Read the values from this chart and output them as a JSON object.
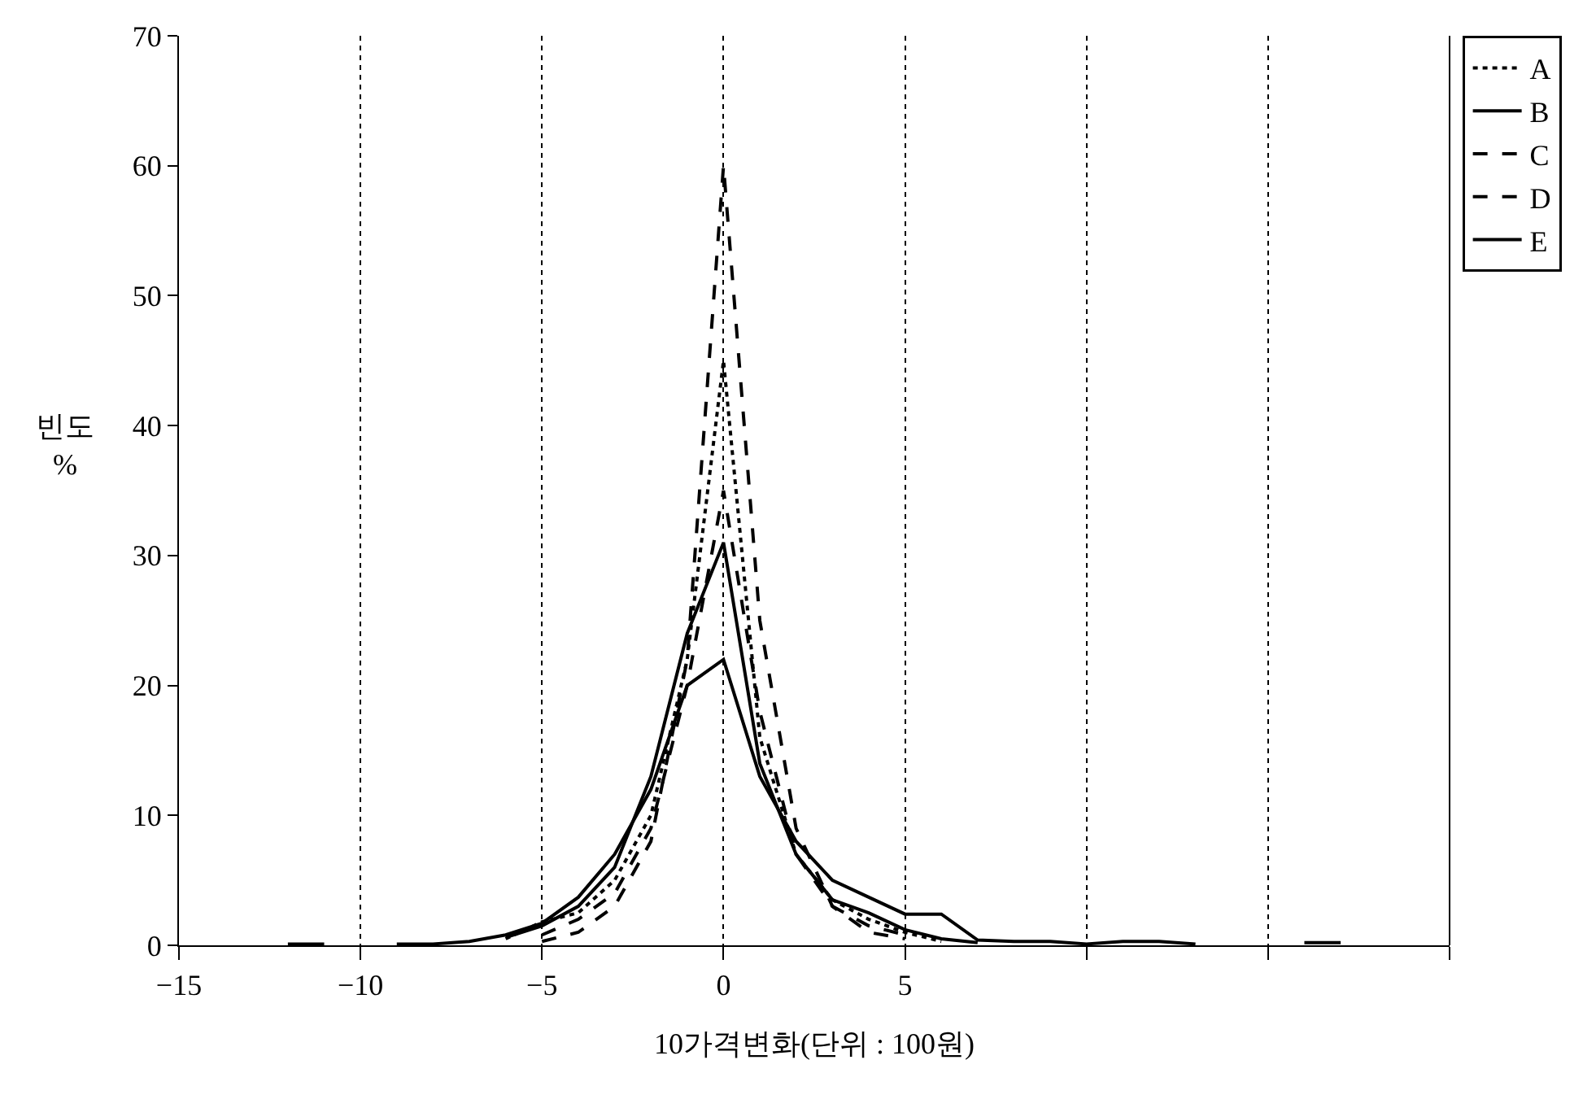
{
  "chart_data": {
    "type": "line",
    "xlabel": "10가격변화(단위 : 100원)",
    "ylabel": "빈도\n%",
    "x": [
      -12,
      -11,
      -10,
      -9,
      -8,
      -7,
      -6,
      -5,
      -4,
      -3,
      -2,
      -1,
      0,
      1,
      2,
      3,
      4,
      5,
      6,
      7,
      8,
      9,
      10,
      11,
      12,
      13,
      14,
      15,
      16,
      17
    ],
    "series": [
      {
        "name": "A",
        "color": "#000000",
        "line_style": "dotted",
        "values": [
          null,
          null,
          null,
          null,
          null,
          null,
          0.5,
          1.8,
          2.5,
          5,
          10,
          22,
          45,
          16,
          7,
          3.5,
          2,
          1,
          0.3,
          null,
          null,
          null,
          null,
          null,
          null,
          null,
          null,
          null,
          null,
          null
        ]
      },
      {
        "name": "B",
        "color": "#000000",
        "line_style": "solid",
        "values": [
          0.1,
          0.1,
          null,
          0.1,
          0.1,
          0.3,
          0.8,
          1.7,
          3.7,
          7,
          12,
          20,
          22,
          13,
          8,
          5,
          3.7,
          2.4,
          2.4,
          0.4,
          0.3,
          0.3,
          0.1,
          0.3,
          0.3,
          0.1,
          null,
          null,
          0.2,
          0.2
        ]
      },
      {
        "name": "C",
        "color": "#000000",
        "line_style": "dashed",
        "values": [
          null,
          null,
          null,
          null,
          null,
          null,
          null,
          0.3,
          1,
          3,
          8,
          22,
          60,
          25,
          9,
          3,
          1,
          0.5,
          null,
          null,
          null,
          null,
          null,
          null,
          null,
          null,
          null,
          null,
          null,
          null
        ]
      },
      {
        "name": "D",
        "color": "#000000",
        "line_style": "dashed",
        "values": [
          null,
          null,
          null,
          null,
          null,
          null,
          null,
          0.8,
          2,
          4,
          9,
          20,
          35,
          18,
          7,
          3,
          1.5,
          0.8,
          null,
          null,
          null,
          null,
          null,
          null,
          null,
          null,
          null,
          null,
          null,
          null
        ]
      },
      {
        "name": "E",
        "color": "#000000",
        "line_style": "solid",
        "values": [
          null,
          null,
          null,
          null,
          null,
          null,
          0.6,
          1.5,
          3,
          6,
          13,
          24,
          31,
          14,
          7,
          3.5,
          2.5,
          1.2,
          0.5,
          0.2,
          null,
          null,
          null,
          null,
          null,
          null,
          null,
          null,
          null,
          null
        ]
      }
    ],
    "xlim": [
      -15,
      20
    ],
    "xticks": [
      {
        "value": -15,
        "label": "−15"
      },
      {
        "value": -10,
        "label": "−10"
      },
      {
        "value": -5,
        "label": "−5"
      },
      0,
      5,
      {
        "value": 10,
        "label": null
      },
      {
        "value": 15,
        "label": null
      },
      {
        "value": 20,
        "label": null
      }
    ],
    "ylim": [
      0,
      70
    ],
    "yticks": [
      0,
      10,
      20,
      30,
      40,
      50,
      60,
      70
    ],
    "grid": "x",
    "legend": "top right",
    "marker": "none"
  }
}
